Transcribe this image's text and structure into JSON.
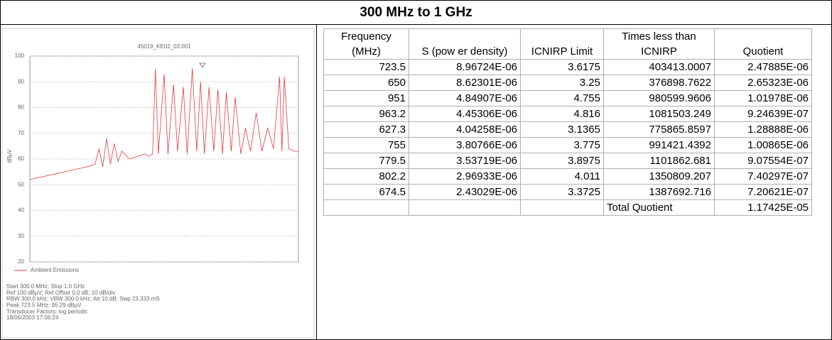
{
  "header": {
    "title": "300 MHz to 1 GHz"
  },
  "chart_data": {
    "type": "line",
    "title": "45019_KE02_03.001",
    "y_label": "dBµV",
    "xlim": [
      300,
      1000
    ],
    "ylim": [
      20,
      100
    ],
    "yticks": [
      20,
      30,
      40,
      50,
      60,
      70,
      80,
      90,
      100
    ],
    "grid": true,
    "x": [
      300,
      330,
      360,
      390,
      420,
      450,
      470,
      480,
      490,
      500,
      510,
      520,
      530,
      540,
      560,
      580,
      600,
      610,
      620,
      627.3,
      635,
      650,
      660,
      674.5,
      685,
      700,
      710,
      723.5,
      735,
      745,
      755,
      767,
      779.5,
      790,
      802.2,
      812,
      825,
      835,
      850,
      862,
      875,
      890,
      905,
      920,
      935,
      951,
      957,
      963.2,
      975,
      990,
      1000
    ],
    "series": [
      {
        "name": "Ambient Emissions",
        "color": "#e8383d",
        "values": [
          52,
          53,
          54,
          55,
          56,
          57,
          58,
          64,
          57,
          68,
          58,
          66,
          59,
          63,
          60,
          61,
          62,
          61,
          62,
          95,
          62,
          93,
          62,
          89,
          63,
          88,
          62,
          95.29,
          63,
          90,
          62,
          88,
          63,
          87,
          62,
          86,
          63,
          84,
          62,
          72,
          63,
          78,
          63,
          72,
          64,
          92,
          63,
          92,
          64,
          63,
          63
        ]
      }
    ],
    "annotations": [
      "Start 300.0 MHz; Stop 1.0 GHz",
      "Ref 100 dBµV; Ref Offset 0.0 dB; 10 dB/div",
      "RBW 300.0 kHz; VBW 300.0 kHz; Att 10 dB; Swp 23.333 mS",
      "Peak 723.5 MHz; 95.29 dBµV",
      "Transducer Factors: log periodic",
      "18/06/2003 17:06:24"
    ]
  },
  "table": {
    "header": [
      "Frequency (MHz)",
      "S (pow er density)",
      "ICNIRP Limit",
      "Times less than ICNIRP",
      "Quotient"
    ],
    "rows": [
      [
        "723.5",
        "8.96724E-06",
        "3.6175",
        "403413.0007",
        "2.47885E-06"
      ],
      [
        "650",
        "8.62301E-06",
        "3.25",
        "376898.7622",
        "2.65323E-06"
      ],
      [
        "951",
        "4.84907E-06",
        "4.755",
        "980599.9606",
        "1.01978E-06"
      ],
      [
        "963.2",
        "4.45306E-06",
        "4.816",
        "1081503.249",
        "9.24639E-07"
      ],
      [
        "627.3",
        "4.04258E-06",
        "3.1365",
        "775865.8597",
        "1.28888E-06"
      ],
      [
        "755",
        "3.80766E-06",
        "3.775",
        "991421.4392",
        "1.00865E-06"
      ],
      [
        "779.5",
        "3.53719E-06",
        "3.8975",
        "1101862.681",
        "9.07554E-07"
      ],
      [
        "802.2",
        "2.96933E-06",
        "4.011",
        "1350809.207",
        "7.40297E-07"
      ],
      [
        "674.5",
        "2.43029E-06",
        "3.3725",
        "1387692.716",
        "7.20621E-07"
      ]
    ],
    "total": {
      "label": "Total Quotient",
      "value": "1.17425E-05"
    }
  }
}
